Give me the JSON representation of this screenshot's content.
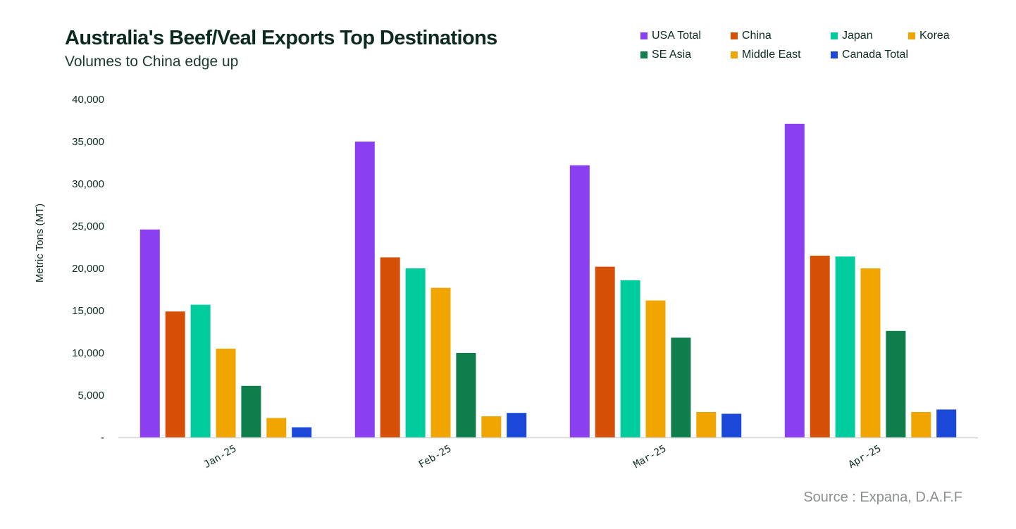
{
  "chart_data": {
    "type": "bar",
    "title": "Australia's Beef/Veal Exports Top Destinations",
    "subtitle": "Volumes to China edge up",
    "ylabel": "Metric Tons (MT)",
    "xlabel": "",
    "ylim": [
      0,
      40000
    ],
    "yticks": [
      0,
      5000,
      10000,
      15000,
      20000,
      25000,
      30000,
      35000,
      40000
    ],
    "ytick_labels": [
      "-",
      "5,000",
      "10,000",
      "15,000",
      "20,000",
      "25,000",
      "30,000",
      "35,000",
      "40,000"
    ],
    "categories": [
      "Jan-25",
      "Feb-25",
      "Mar-25",
      "Apr-25"
    ],
    "series": [
      {
        "name": "USA Total",
        "color": "#8a3ff1",
        "values": [
          24600,
          35000,
          32200,
          37100
        ]
      },
      {
        "name": "China",
        "color": "#d64f06",
        "values": [
          14900,
          21300,
          20200,
          21500
        ]
      },
      {
        "name": "Japan",
        "color": "#00cc9e",
        "values": [
          15700,
          20000,
          18600,
          21400
        ]
      },
      {
        "name": "Korea",
        "color": "#f0a500",
        "values": [
          10500,
          17700,
          16200,
          20000
        ]
      },
      {
        "name": "SE Asia",
        "color": "#0f7d4c",
        "values": [
          6100,
          10000,
          11800,
          12600
        ]
      },
      {
        "name": "Middle East",
        "color": "#f0a500",
        "values": [
          2300,
          2500,
          3000,
          3000
        ]
      },
      {
        "name": "Canada Total",
        "color": "#1b48d9",
        "values": [
          1200,
          2900,
          2800,
          3300
        ]
      }
    ],
    "grid": false,
    "legend_position": "top-right",
    "source": "Source : Expana, D.A.F.F"
  }
}
